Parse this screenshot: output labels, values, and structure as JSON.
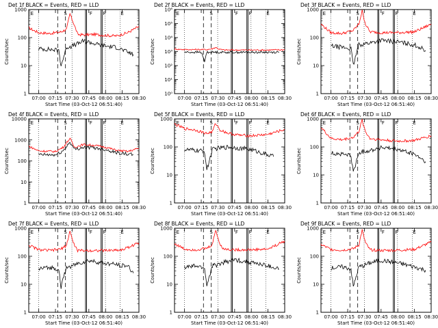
{
  "figure": {
    "background": "#ffffff",
    "axis_color": "#000000",
    "events_color": "#000000",
    "lld_color": "#ff0000"
  },
  "chart_data": [
    {
      "type": "line",
      "title": "Det 1f BLACK = Events, RED = LLD",
      "xlabel": "Start Time (03-Oct-12 06:51:40)",
      "ylabel": "Counts/sec",
      "yscale": "log",
      "ylim": [
        1,
        1000
      ],
      "ytick_labels": [
        "1",
        "10",
        "100",
        "1000"
      ],
      "xtick_labels": [
        "07:00",
        "07:15",
        "07:30",
        "07:45",
        "08:00",
        "08:15",
        "08:30"
      ],
      "markers": [
        "E",
        "S",
        "F",
        "F",
        "E"
      ],
      "series": [
        {
          "name": "LLD",
          "color": "#ff0000",
          "x": [
            "06:51",
            "07:00",
            "07:10",
            "07:20",
            "07:25",
            "07:28",
            "07:31",
            "07:35",
            "07:40",
            "07:50",
            "08:00",
            "08:10",
            "08:20",
            "08:30"
          ],
          "values": [
            220,
            150,
            140,
            160,
            200,
            700,
            350,
            130,
            125,
            130,
            120,
            115,
            150,
            250
          ]
        },
        {
          "name": "Events",
          "color": "#000000",
          "x": [
            "07:00",
            "07:10",
            "07:18",
            "07:20",
            "07:25",
            "07:30",
            "07:35",
            "07:40",
            "07:45",
            "07:50",
            "08:00",
            "08:10",
            "08:20",
            "08:25"
          ],
          "values": [
            40,
            38,
            35,
            10,
            45,
            50,
            60,
            75,
            70,
            60,
            50,
            45,
            30,
            25
          ]
        }
      ]
    },
    {
      "type": "line",
      "title": "Det 2f BLACK = Events, RED = LLD",
      "xlabel": "Start Time (03-Oct-12 06:51:40)",
      "ylabel": "Counts/sec",
      "yscale": "log",
      "ylim": [
        1,
        1000000
      ],
      "ytick_labels": [
        "10⁰",
        "10¹",
        "10²",
        "10³",
        "10⁴",
        "10⁵",
        "10⁶"
      ],
      "xtick_labels": [
        "07:00",
        "07:15",
        "07:30",
        "07:45",
        "08:00",
        "08:15",
        "08:30"
      ],
      "markers": [
        "E",
        "S",
        "F",
        "F",
        "E"
      ],
      "series": [
        {
          "name": "LLD",
          "color": "#ff0000",
          "x": [
            "06:51",
            "07:00",
            "07:20",
            "07:25",
            "07:28",
            "07:31",
            "07:35",
            "07:45",
            "08:00",
            "08:15",
            "08:30"
          ],
          "values": [
            1500,
            1400,
            1400,
            1600,
            2000,
            1500,
            1300,
            1300,
            1300,
            1300,
            1350
          ]
        },
        {
          "name": "Events",
          "color": "#000000",
          "x": [
            "07:00",
            "07:15",
            "07:18",
            "07:20",
            "07:30",
            "07:45",
            "08:00",
            "08:15",
            "08:25"
          ],
          "values": [
            900,
            900,
            200,
            900,
            900,
            900,
            900,
            900,
            900
          ]
        }
      ]
    },
    {
      "type": "line",
      "title": "Det 3f BLACK = Events, RED = LLD",
      "xlabel": "Start Time (03-Oct-12 06:51:40)",
      "ylabel": "Counts/sec",
      "yscale": "log",
      "ylim": [
        1,
        1000
      ],
      "ytick_labels": [
        "1",
        "10",
        "100",
        "1000"
      ],
      "xtick_labels": [
        "07:00",
        "07:15",
        "07:30",
        "07:45",
        "08:00",
        "08:15",
        "08:30"
      ],
      "markers": [
        "E",
        "S",
        "F",
        "F",
        "E"
      ],
      "series": [
        {
          "name": "LLD",
          "color": "#ff0000",
          "x": [
            "06:51",
            "07:00",
            "07:10",
            "07:20",
            "07:25",
            "07:28",
            "07:31",
            "07:35",
            "07:45",
            "08:00",
            "08:15",
            "08:30"
          ],
          "values": [
            300,
            150,
            140,
            180,
            300,
            900,
            300,
            160,
            150,
            150,
            160,
            300
          ]
        },
        {
          "name": "Events",
          "color": "#000000",
          "x": [
            "07:00",
            "07:10",
            "07:18",
            "07:20",
            "07:25",
            "07:30",
            "07:35",
            "07:45",
            "08:00",
            "08:15",
            "08:25"
          ],
          "values": [
            50,
            45,
            40,
            10,
            55,
            60,
            65,
            80,
            70,
            55,
            35
          ]
        }
      ]
    },
    {
      "type": "line",
      "title": "Det 4f BLACK = Events, RED = LLD",
      "xlabel": "Start Time (03-Oct-12 06:51:40)",
      "ylabel": "Counts/sec",
      "yscale": "log",
      "ylim": [
        1,
        10000
      ],
      "ytick_labels": [
        "1",
        "10",
        "100",
        "1000",
        "10000"
      ],
      "xtick_labels": [
        "07:00",
        "07:15",
        "07:30",
        "07:45",
        "08:00",
        "08:15",
        "08:30"
      ],
      "markers": [
        "E",
        "S",
        "F",
        "F",
        "E"
      ],
      "series": [
        {
          "name": "LLD",
          "color": "#ff0000",
          "x": [
            "06:51",
            "07:00",
            "07:15",
            "07:22",
            "07:28",
            "07:32",
            "07:40",
            "07:50",
            "08:00",
            "08:10",
            "08:20",
            "08:30"
          ],
          "values": [
            500,
            300,
            280,
            450,
            1200,
            450,
            600,
            550,
            450,
            320,
            280,
            400
          ]
        },
        {
          "name": "Events",
          "color": "#000000",
          "x": [
            "07:00",
            "07:15",
            "07:22",
            "07:28",
            "07:32",
            "07:40",
            "07:50",
            "08:00",
            "08:10",
            "08:20",
            "08:25"
          ],
          "values": [
            200,
            190,
            300,
            800,
            350,
            450,
            420,
            350,
            250,
            210,
            200
          ]
        }
      ]
    },
    {
      "type": "line",
      "title": "Det 5f BLACK = Events, RED = LLD",
      "xlabel": "Start Time (03-Oct-12 06:51:40)",
      "ylabel": "Counts/sec",
      "yscale": "log",
      "ylim": [
        1,
        1000
      ],
      "ytick_labels": [
        "1",
        "10",
        "100",
        "1000"
      ],
      "xtick_labels": [
        "07:00",
        "07:15",
        "07:30",
        "07:45",
        "08:00",
        "08:15",
        "08:30"
      ],
      "markers": [
        "E",
        "S",
        "F",
        "F",
        "E"
      ],
      "series": [
        {
          "name": "LLD",
          "color": "#ff0000",
          "x": [
            "06:51",
            "07:00",
            "07:10",
            "07:20",
            "07:25",
            "07:28",
            "07:32",
            "07:40",
            "07:50",
            "08:00",
            "08:15",
            "08:30"
          ],
          "values": [
            650,
            450,
            400,
            300,
            350,
            700,
            400,
            300,
            260,
            250,
            280,
            420
          ]
        },
        {
          "name": "Events",
          "color": "#000000",
          "x": [
            "07:00",
            "07:10",
            "07:18",
            "07:20",
            "07:25",
            "07:30",
            "07:40",
            "07:50",
            "08:00",
            "08:10",
            "08:20"
          ],
          "values": [
            80,
            75,
            70,
            15,
            80,
            90,
            100,
            90,
            80,
            60,
            45
          ]
        }
      ]
    },
    {
      "type": "line",
      "title": "Det 6f BLACK = Events, RED = LLD",
      "xlabel": "Start Time (03-Oct-12 06:51:40)",
      "ylabel": "Counts/sec",
      "yscale": "log",
      "ylim": [
        1,
        1000
      ],
      "ytick_labels": [
        "1",
        "10",
        "100",
        "1000"
      ],
      "xtick_labels": [
        "07:00",
        "07:15",
        "07:30",
        "07:45",
        "08:00",
        "08:15",
        "08:30"
      ],
      "markers": [
        "E",
        "S",
        "F",
        "F",
        "E"
      ],
      "series": [
        {
          "name": "LLD",
          "color": "#ff0000",
          "x": [
            "06:51",
            "07:00",
            "07:10",
            "07:20",
            "07:25",
            "07:28",
            "07:31",
            "07:35",
            "07:45",
            "08:00",
            "08:15",
            "08:30"
          ],
          "values": [
            500,
            200,
            180,
            220,
            350,
            900,
            350,
            200,
            180,
            160,
            170,
            250
          ]
        },
        {
          "name": "Events",
          "color": "#000000",
          "x": [
            "07:00",
            "07:10",
            "07:18",
            "07:20",
            "07:25",
            "07:30",
            "07:35",
            "07:45",
            "08:00",
            "08:15",
            "08:25"
          ],
          "values": [
            60,
            55,
            50,
            12,
            60,
            70,
            75,
            95,
            80,
            55,
            30
          ]
        }
      ]
    },
    {
      "type": "line",
      "title": "Det 7f BLACK = Events, RED = LLD",
      "xlabel": "Start Time (03-Oct-12 06:51:40)",
      "ylabel": "Counts/sec",
      "yscale": "log",
      "ylim": [
        1,
        1000
      ],
      "ytick_labels": [
        "1",
        "10",
        "100",
        "1000"
      ],
      "xtick_labels": [
        "07:00",
        "07:15",
        "07:30",
        "07:45",
        "08:00",
        "08:15",
        "08:30"
      ],
      "markers": [
        "E",
        "S",
        "F",
        "F",
        "E"
      ],
      "series": [
        {
          "name": "LLD",
          "color": "#ff0000",
          "x": [
            "06:51",
            "07:00",
            "07:10",
            "07:20",
            "07:25",
            "07:28",
            "07:31",
            "07:35",
            "07:45",
            "08:00",
            "08:15",
            "08:30"
          ],
          "values": [
            250,
            170,
            160,
            180,
            250,
            800,
            300,
            160,
            160,
            160,
            170,
            300
          ]
        },
        {
          "name": "Events",
          "color": "#000000",
          "x": [
            "07:00",
            "07:10",
            "07:18",
            "07:20",
            "07:25",
            "07:30",
            "07:35",
            "07:45",
            "08:00",
            "08:10",
            "08:20",
            "08:25"
          ],
          "values": [
            35,
            40,
            35,
            8,
            40,
            45,
            55,
            70,
            55,
            50,
            45,
            25
          ]
        }
      ]
    },
    {
      "type": "line",
      "title": "Det 8f BLACK = Events, RED = LLD",
      "xlabel": "Start Time (03-Oct-12 06:51:40)",
      "ylabel": "Counts/sec",
      "yscale": "log",
      "ylim": [
        1,
        1000
      ],
      "ytick_labels": [
        "1",
        "10",
        "100",
        "1000"
      ],
      "xtick_labels": [
        "07:00",
        "07:15",
        "07:30",
        "07:45",
        "08:00",
        "08:15",
        "08:30"
      ],
      "markers": [
        "E",
        "S",
        "F",
        "F",
        "E"
      ],
      "series": [
        {
          "name": "LLD",
          "color": "#ff0000",
          "x": [
            "06:51",
            "07:00",
            "07:10",
            "07:20",
            "07:25",
            "07:28",
            "07:31",
            "07:35",
            "07:45",
            "08:00",
            "08:15",
            "08:30"
          ],
          "values": [
            280,
            180,
            170,
            190,
            260,
            900,
            320,
            180,
            170,
            170,
            180,
            350
          ]
        },
        {
          "name": "Events",
          "color": "#000000",
          "x": [
            "07:00",
            "07:10",
            "07:18",
            "07:20",
            "07:25",
            "07:30",
            "07:35",
            "07:45",
            "08:00",
            "08:15",
            "08:25"
          ],
          "values": [
            40,
            45,
            38,
            9,
            45,
            50,
            60,
            75,
            60,
            45,
            35
          ]
        }
      ]
    },
    {
      "type": "line",
      "title": "Det 9f BLACK = Events, RED = LLD",
      "xlabel": "Start Time (03-Oct-12 06:51:40)",
      "ylabel": "Counts/sec",
      "yscale": "log",
      "ylim": [
        1,
        1000
      ],
      "ytick_labels": [
        "1",
        "10",
        "100",
        "1000"
      ],
      "xtick_labels": [
        "07:00",
        "07:15",
        "07:30",
        "07:45",
        "08:00",
        "08:15",
        "08:30"
      ],
      "markers": [
        "E",
        "S",
        "F",
        "F",
        "E"
      ],
      "series": [
        {
          "name": "LLD",
          "color": "#ff0000",
          "x": [
            "06:51",
            "07:00",
            "07:10",
            "07:20",
            "07:25",
            "07:28",
            "07:31",
            "07:35",
            "07:45",
            "08:00",
            "08:15",
            "08:30"
          ],
          "values": [
            260,
            175,
            165,
            185,
            250,
            850,
            300,
            170,
            160,
            165,
            175,
            320
          ]
        },
        {
          "name": "Events",
          "color": "#000000",
          "x": [
            "07:00",
            "07:10",
            "07:18",
            "07:20",
            "07:25",
            "07:30",
            "07:35",
            "07:45",
            "08:00",
            "08:15",
            "08:25"
          ],
          "values": [
            38,
            42,
            36,
            8,
            42,
            48,
            58,
            72,
            58,
            42,
            32
          ]
        }
      ]
    }
  ]
}
